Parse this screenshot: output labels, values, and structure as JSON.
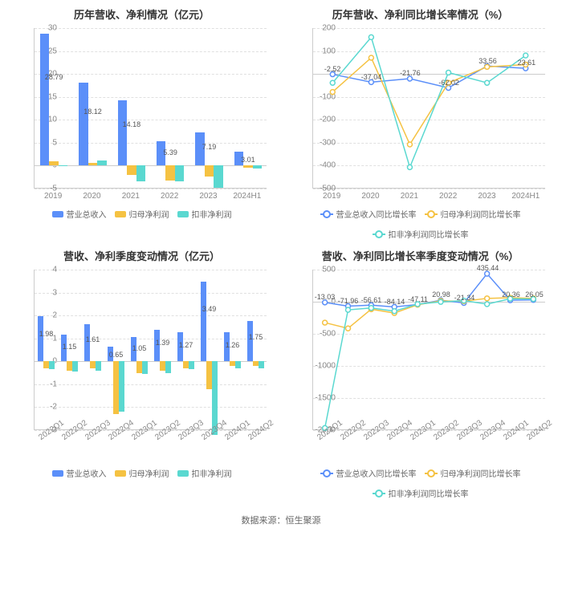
{
  "source_text": "数据来源：恒生聚源",
  "colors": {
    "series_blue": "#5b8ff9",
    "series_yellow": "#f5c242",
    "series_teal": "#5ad8d0",
    "grid": "#e0e0e0",
    "axis": "#cccccc",
    "text": "#888888"
  },
  "chart1": {
    "title": "历年营收、净利情况（亿元）",
    "type": "bar",
    "categories": [
      "2019",
      "2020",
      "2021",
      "2022",
      "2023",
      "2024H1"
    ],
    "y": {
      "min": -5,
      "max": 30,
      "step": 5
    },
    "series": [
      {
        "name": "营业总收入",
        "color": "#5b8ff9",
        "values": [
          28.79,
          18.12,
          14.18,
          5.39,
          7.19,
          3.01
        ],
        "labels": [
          "28.79",
          "18.12",
          "14.18",
          "5.39",
          "7.19",
          "3.01"
        ]
      },
      {
        "name": "归母净利润",
        "color": "#f5c242",
        "values": [
          1.0,
          0.6,
          -2.0,
          -3.2,
          -2.4,
          -0.4
        ]
      },
      {
        "name": "扣非净利润",
        "color": "#5ad8d0",
        "values": [
          0.1,
          1.2,
          -3.5,
          -3.4,
          -4.8,
          -0.6
        ]
      }
    ]
  },
  "chart2": {
    "title": "历年营收、净利同比增长率情况（%）",
    "type": "line",
    "categories": [
      "2019",
      "2020",
      "2021",
      "2022",
      "2023",
      "2024H1"
    ],
    "y": {
      "min": -500,
      "max": 200,
      "step": 100
    },
    "series": [
      {
        "name": "营业总收入同比增长率",
        "color": "#5b8ff9",
        "values": [
          -2.52,
          -37.04,
          -21.76,
          -62.02,
          33.56,
          23.61
        ],
        "labels": [
          "-2.52",
          "-37.04",
          "-21.76",
          "-62.02",
          "33.56",
          "23.61"
        ]
      },
      {
        "name": "归母净利润同比增长率",
        "color": "#f5c242",
        "values": [
          -80,
          70,
          -310,
          -40,
          30,
          40
        ]
      },
      {
        "name": "扣非净利润同比增长率",
        "color": "#5ad8d0",
        "values": [
          -40,
          160,
          -410,
          5,
          -40,
          80
        ]
      }
    ]
  },
  "chart3": {
    "title": "营收、净利季度变动情况（亿元）",
    "type": "bar",
    "categories": [
      "2022Q1",
      "2022Q2",
      "2022Q3",
      "2022Q4",
      "2023Q1",
      "2023Q2",
      "2023Q3",
      "2023Q4",
      "2024Q1",
      "2024Q2"
    ],
    "rotate_x": true,
    "y": {
      "min": -3,
      "max": 4,
      "step": 1
    },
    "series": [
      {
        "name": "营业总收入",
        "color": "#5b8ff9",
        "values": [
          1.98,
          1.15,
          1.61,
          0.65,
          1.05,
          1.39,
          1.27,
          3.49,
          1.26,
          1.75
        ],
        "labels": [
          "1.98",
          "1.15",
          "1.61",
          "0.65",
          "1.05",
          "1.39",
          "1.27",
          "3.49",
          "1.26",
          "1.75"
        ]
      },
      {
        "name": "归母净利润",
        "color": "#f5c242",
        "values": [
          -0.3,
          -0.4,
          -0.3,
          -2.3,
          -0.5,
          -0.4,
          -0.3,
          -1.2,
          -0.2,
          -0.2
        ]
      },
      {
        "name": "扣非净利润",
        "color": "#5ad8d0",
        "values": [
          -0.35,
          -0.45,
          -0.4,
          -2.2,
          -0.55,
          -0.5,
          -0.35,
          -3.2,
          -0.3,
          -0.3
        ]
      }
    ]
  },
  "chart4": {
    "title": "营收、净利同比增长率季度变动情况（%）",
    "type": "line",
    "categories": [
      "2022Q1",
      "2022Q2",
      "2022Q3",
      "2022Q4",
      "2023Q1",
      "2023Q2",
      "2023Q3",
      "2023Q4",
      "2024Q1",
      "2024Q2"
    ],
    "rotate_x": true,
    "y": {
      "min": -2000,
      "max": 500,
      "step": 500
    },
    "series": [
      {
        "name": "营业总收入同比增长率",
        "color": "#5b8ff9",
        "values": [
          -13.03,
          -71.96,
          -56.61,
          -84.14,
          -47.11,
          20.98,
          -21.34,
          435.44,
          20.36,
          26.05
        ],
        "labels": [
          "-13.03",
          "-71.96",
          "-56.61",
          "-84.14",
          "-47.11",
          "20.98",
          "-21.34",
          "435.44",
          "20.36",
          "26.05"
        ]
      },
      {
        "name": "归母净利润同比增长率",
        "color": "#f5c242",
        "values": [
          -330,
          -420,
          -120,
          -180,
          -50,
          10,
          5,
          50,
          60,
          50
        ]
      },
      {
        "name": "扣非净利润同比增长率",
        "color": "#5ad8d0",
        "values": [
          -1980,
          -130,
          -100,
          -150,
          -40,
          -5,
          15,
          -40,
          45,
          40
        ]
      }
    ]
  }
}
